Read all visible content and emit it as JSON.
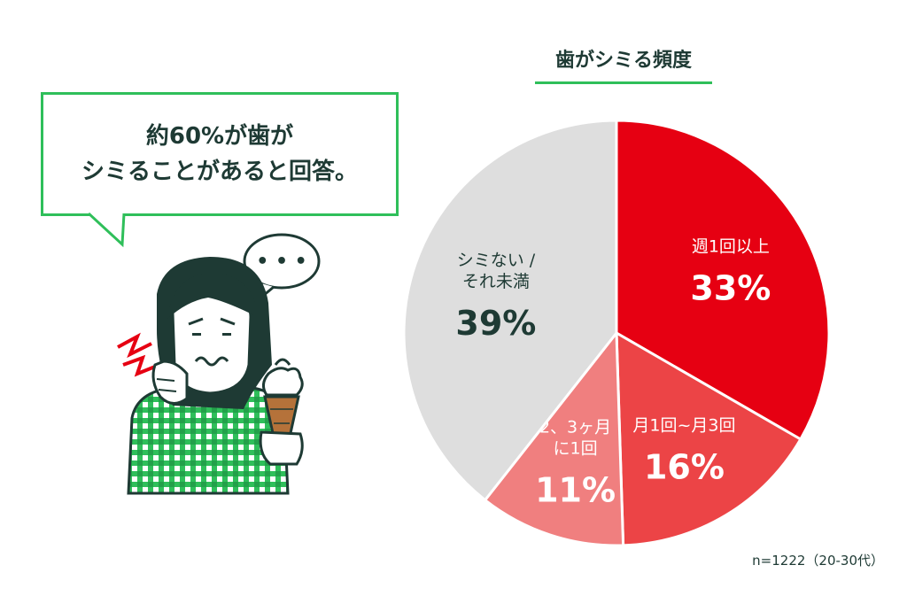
{
  "callout": {
    "line1": "約60%が歯が",
    "line2": "シミることがあると回答。"
  },
  "chart_data": {
    "type": "pie",
    "title": "歯がシミる頻度",
    "slices": [
      {
        "label_lines": [
          "週1回以上"
        ],
        "value": 33,
        "value_label": "33%",
        "color": "#e60012",
        "label_color": "#ffffff"
      },
      {
        "label_lines": [
          "月1回~月3回"
        ],
        "value": 16,
        "value_label": "16%",
        "color": "#ec4446",
        "label_color": "#ffffff"
      },
      {
        "label_lines": [
          "2、3ヶ月",
          "に1回"
        ],
        "value": 11,
        "value_label": "11%",
        "color": "#f07f7f",
        "label_color": "#ffffff"
      },
      {
        "label_lines": [
          "シミない /",
          "それ未満"
        ],
        "value": 39,
        "value_label": "39%",
        "color": "#dedede",
        "label_color": "#1e3a34"
      }
    ],
    "start_angle": "12 o'clock",
    "direction": "clockwise"
  },
  "footnote": "n=1222（20-30代）",
  "illustration": {
    "thought_dots": "• • •",
    "icons": [
      "person-with-toothache-icon",
      "ice-cream-cone-icon",
      "pain-zigzag-icon",
      "thought-bubble-icon"
    ]
  }
}
